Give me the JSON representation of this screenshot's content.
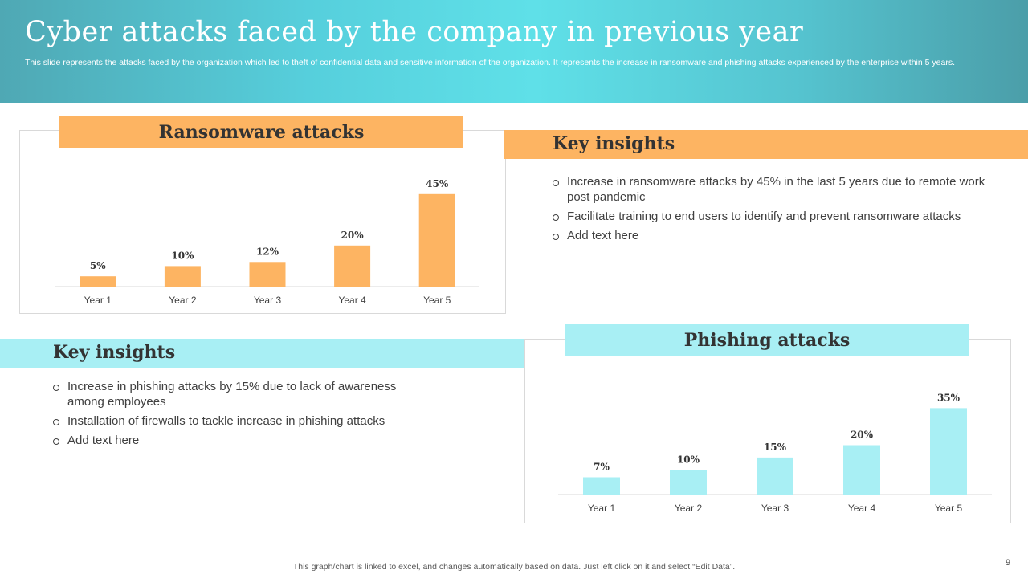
{
  "header": {
    "title": "Cyber attacks faced by the company in previous year",
    "subtitle": "This slide represents the attacks faced by the organization which led to theft of confidential data and sensitive information of the organization. It represents the increase in ransomware and phishing attacks experienced by the enterprise within 5 years."
  },
  "colors": {
    "orange": "#fdb462",
    "cyan": "#a8eff4"
  },
  "chart_data": [
    {
      "type": "bar",
      "title": "Ransomware attacks",
      "categories": [
        "Year 1",
        "Year 2",
        "Year 3",
        "Year 4",
        "Year 5"
      ],
      "values": [
        5,
        10,
        12,
        20,
        45
      ],
      "data_labels": [
        "5%",
        "10%",
        "12%",
        "20%",
        "45%"
      ],
      "unit": "%",
      "ylim": [
        0,
        50
      ],
      "grid": false,
      "legend": "none"
    },
    {
      "type": "bar",
      "title": "Phishing attacks",
      "categories": [
        "Year 1",
        "Year 2",
        "Year 3",
        "Year 4",
        "Year 5"
      ],
      "values": [
        7,
        10,
        15,
        20,
        35
      ],
      "data_labels": [
        "7%",
        "10%",
        "15%",
        "20%",
        "35%"
      ],
      "unit": "%",
      "ylim": [
        0,
        40
      ],
      "grid": false,
      "legend": "none"
    }
  ],
  "ransomware_insights": {
    "title": "Key insights",
    "items": [
      "Increase in ransomware attacks by 45% in the last 5 years due to remote work post pandemic",
      "Facilitate training to end users to identify and prevent ransomware attacks",
      "Add text here"
    ]
  },
  "phishing_insights": {
    "title": "Key insights",
    "items": [
      "Increase in phishing attacks by 15% due to lack of awareness among employees",
      "Installation  of firewalls to tackle increase in phishing attacks",
      "Add text here"
    ]
  },
  "footer": {
    "note": "This graph/chart is linked to excel,  and changes automatically based on data. Just left click on it and select “Edit Data”.",
    "page_number": "9"
  }
}
